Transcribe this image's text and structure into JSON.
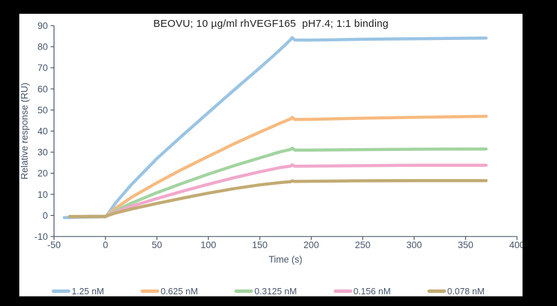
{
  "frame": {
    "background": "#000000",
    "card_background": "#FFFFFF"
  },
  "chart_data": {
    "type": "line",
    "title": "BEOVU; 10 µg/ml rhVEGF165  pH7.4; 1:1 binding",
    "xlabel": "Time (s)",
    "ylabel": "Relative response (RU)",
    "xlim": [
      -50,
      400
    ],
    "ylim": [
      -10,
      90
    ],
    "xticks": [
      -50,
      0,
      50,
      100,
      150,
      200,
      250,
      300,
      350,
      400
    ],
    "yticks": [
      -10,
      0,
      10,
      20,
      30,
      40,
      50,
      60,
      70,
      80,
      90
    ],
    "grid": false,
    "legend_position": "bottom",
    "axis_color": "#44546A",
    "tick_label_color": "#44546A",
    "title_color": "#1F1F1F",
    "line_width": 4.5,
    "annotations": {
      "association_end_s": 180,
      "curve_end_s": 370
    },
    "series": [
      {
        "name": "1.25 nM",
        "color": "#9AC4E4",
        "points": [
          [
            -40,
            -1.0
          ],
          [
            -30,
            -0.9
          ],
          [
            -20,
            -0.8
          ],
          [
            -10,
            -0.7
          ],
          [
            0,
            -0.6
          ],
          [
            2,
            0.5
          ],
          [
            10,
            6
          ],
          [
            25,
            14.5
          ],
          [
            50,
            27
          ],
          [
            75,
            38
          ],
          [
            100,
            48.8
          ],
          [
            125,
            59.5
          ],
          [
            150,
            70
          ],
          [
            165,
            76.5
          ],
          [
            175,
            81
          ],
          [
            180,
            83.4
          ],
          [
            181.5,
            84.3
          ],
          [
            184,
            83.2
          ],
          [
            195,
            83.1
          ],
          [
            220,
            83.3
          ],
          [
            260,
            83.6
          ],
          [
            300,
            83.8
          ],
          [
            340,
            84.0
          ],
          [
            370,
            84.1
          ]
        ]
      },
      {
        "name": "0.625 nM",
        "color": "#F7BA80",
        "points": [
          [
            -35,
            -0.5
          ],
          [
            -20,
            -0.5
          ],
          [
            -10,
            -0.4
          ],
          [
            0,
            -0.4
          ],
          [
            2,
            0.3
          ],
          [
            10,
            3.5
          ],
          [
            25,
            8.5
          ],
          [
            50,
            15.5
          ],
          [
            75,
            22
          ],
          [
            100,
            28
          ],
          [
            125,
            34
          ],
          [
            150,
            39.5
          ],
          [
            170,
            43.8
          ],
          [
            180,
            45.8
          ],
          [
            181.5,
            46.5
          ],
          [
            184,
            45.5
          ],
          [
            200,
            45.6
          ],
          [
            250,
            46.1
          ],
          [
            300,
            46.5
          ],
          [
            370,
            47.0
          ]
        ]
      },
      {
        "name": "0.3125 nM",
        "color": "#A2D4A0",
        "points": [
          [
            -35,
            -0.5
          ],
          [
            -20,
            -0.5
          ],
          [
            -10,
            -0.4
          ],
          [
            0,
            -0.4
          ],
          [
            2,
            0.2
          ],
          [
            10,
            2.3
          ],
          [
            25,
            5.8
          ],
          [
            50,
            10.8
          ],
          [
            75,
            15.3
          ],
          [
            100,
            19.6
          ],
          [
            125,
            23.6
          ],
          [
            150,
            27.3
          ],
          [
            170,
            30.2
          ],
          [
            180,
            31.3
          ],
          [
            181.5,
            31.9
          ],
          [
            184,
            31.0
          ],
          [
            200,
            31.0
          ],
          [
            250,
            31.2
          ],
          [
            300,
            31.4
          ],
          [
            370,
            31.5
          ]
        ]
      },
      {
        "name": "0.156 nM",
        "color": "#F1A8CB",
        "points": [
          [
            -35,
            -0.6
          ],
          [
            -20,
            -0.5
          ],
          [
            -10,
            -0.5
          ],
          [
            0,
            -0.5
          ],
          [
            2,
            0.1
          ],
          [
            10,
            1.7
          ],
          [
            25,
            4.3
          ],
          [
            50,
            8.0
          ],
          [
            75,
            11.5
          ],
          [
            100,
            14.8
          ],
          [
            125,
            17.9
          ],
          [
            150,
            20.7
          ],
          [
            170,
            22.7
          ],
          [
            180,
            23.4
          ],
          [
            181.5,
            24.0
          ],
          [
            184,
            23.3
          ],
          [
            200,
            23.4
          ],
          [
            250,
            23.6
          ],
          [
            300,
            23.8
          ],
          [
            370,
            23.8
          ]
        ]
      },
      {
        "name": "0.078 nM",
        "color": "#C2AB72",
        "points": [
          [
            -35,
            -0.6
          ],
          [
            -20,
            -0.6
          ],
          [
            -10,
            -0.5
          ],
          [
            0,
            -0.6
          ],
          [
            2,
            -0.1
          ],
          [
            10,
            1.2
          ],
          [
            25,
            3.0
          ],
          [
            50,
            5.7
          ],
          [
            75,
            8.2
          ],
          [
            100,
            10.6
          ],
          [
            125,
            12.7
          ],
          [
            150,
            14.5
          ],
          [
            170,
            15.6
          ],
          [
            180,
            16.0
          ],
          [
            181.5,
            16.4
          ],
          [
            184,
            16.1
          ],
          [
            200,
            16.2
          ],
          [
            250,
            16.4
          ],
          [
            300,
            16.5
          ],
          [
            370,
            16.5
          ]
        ]
      }
    ]
  }
}
